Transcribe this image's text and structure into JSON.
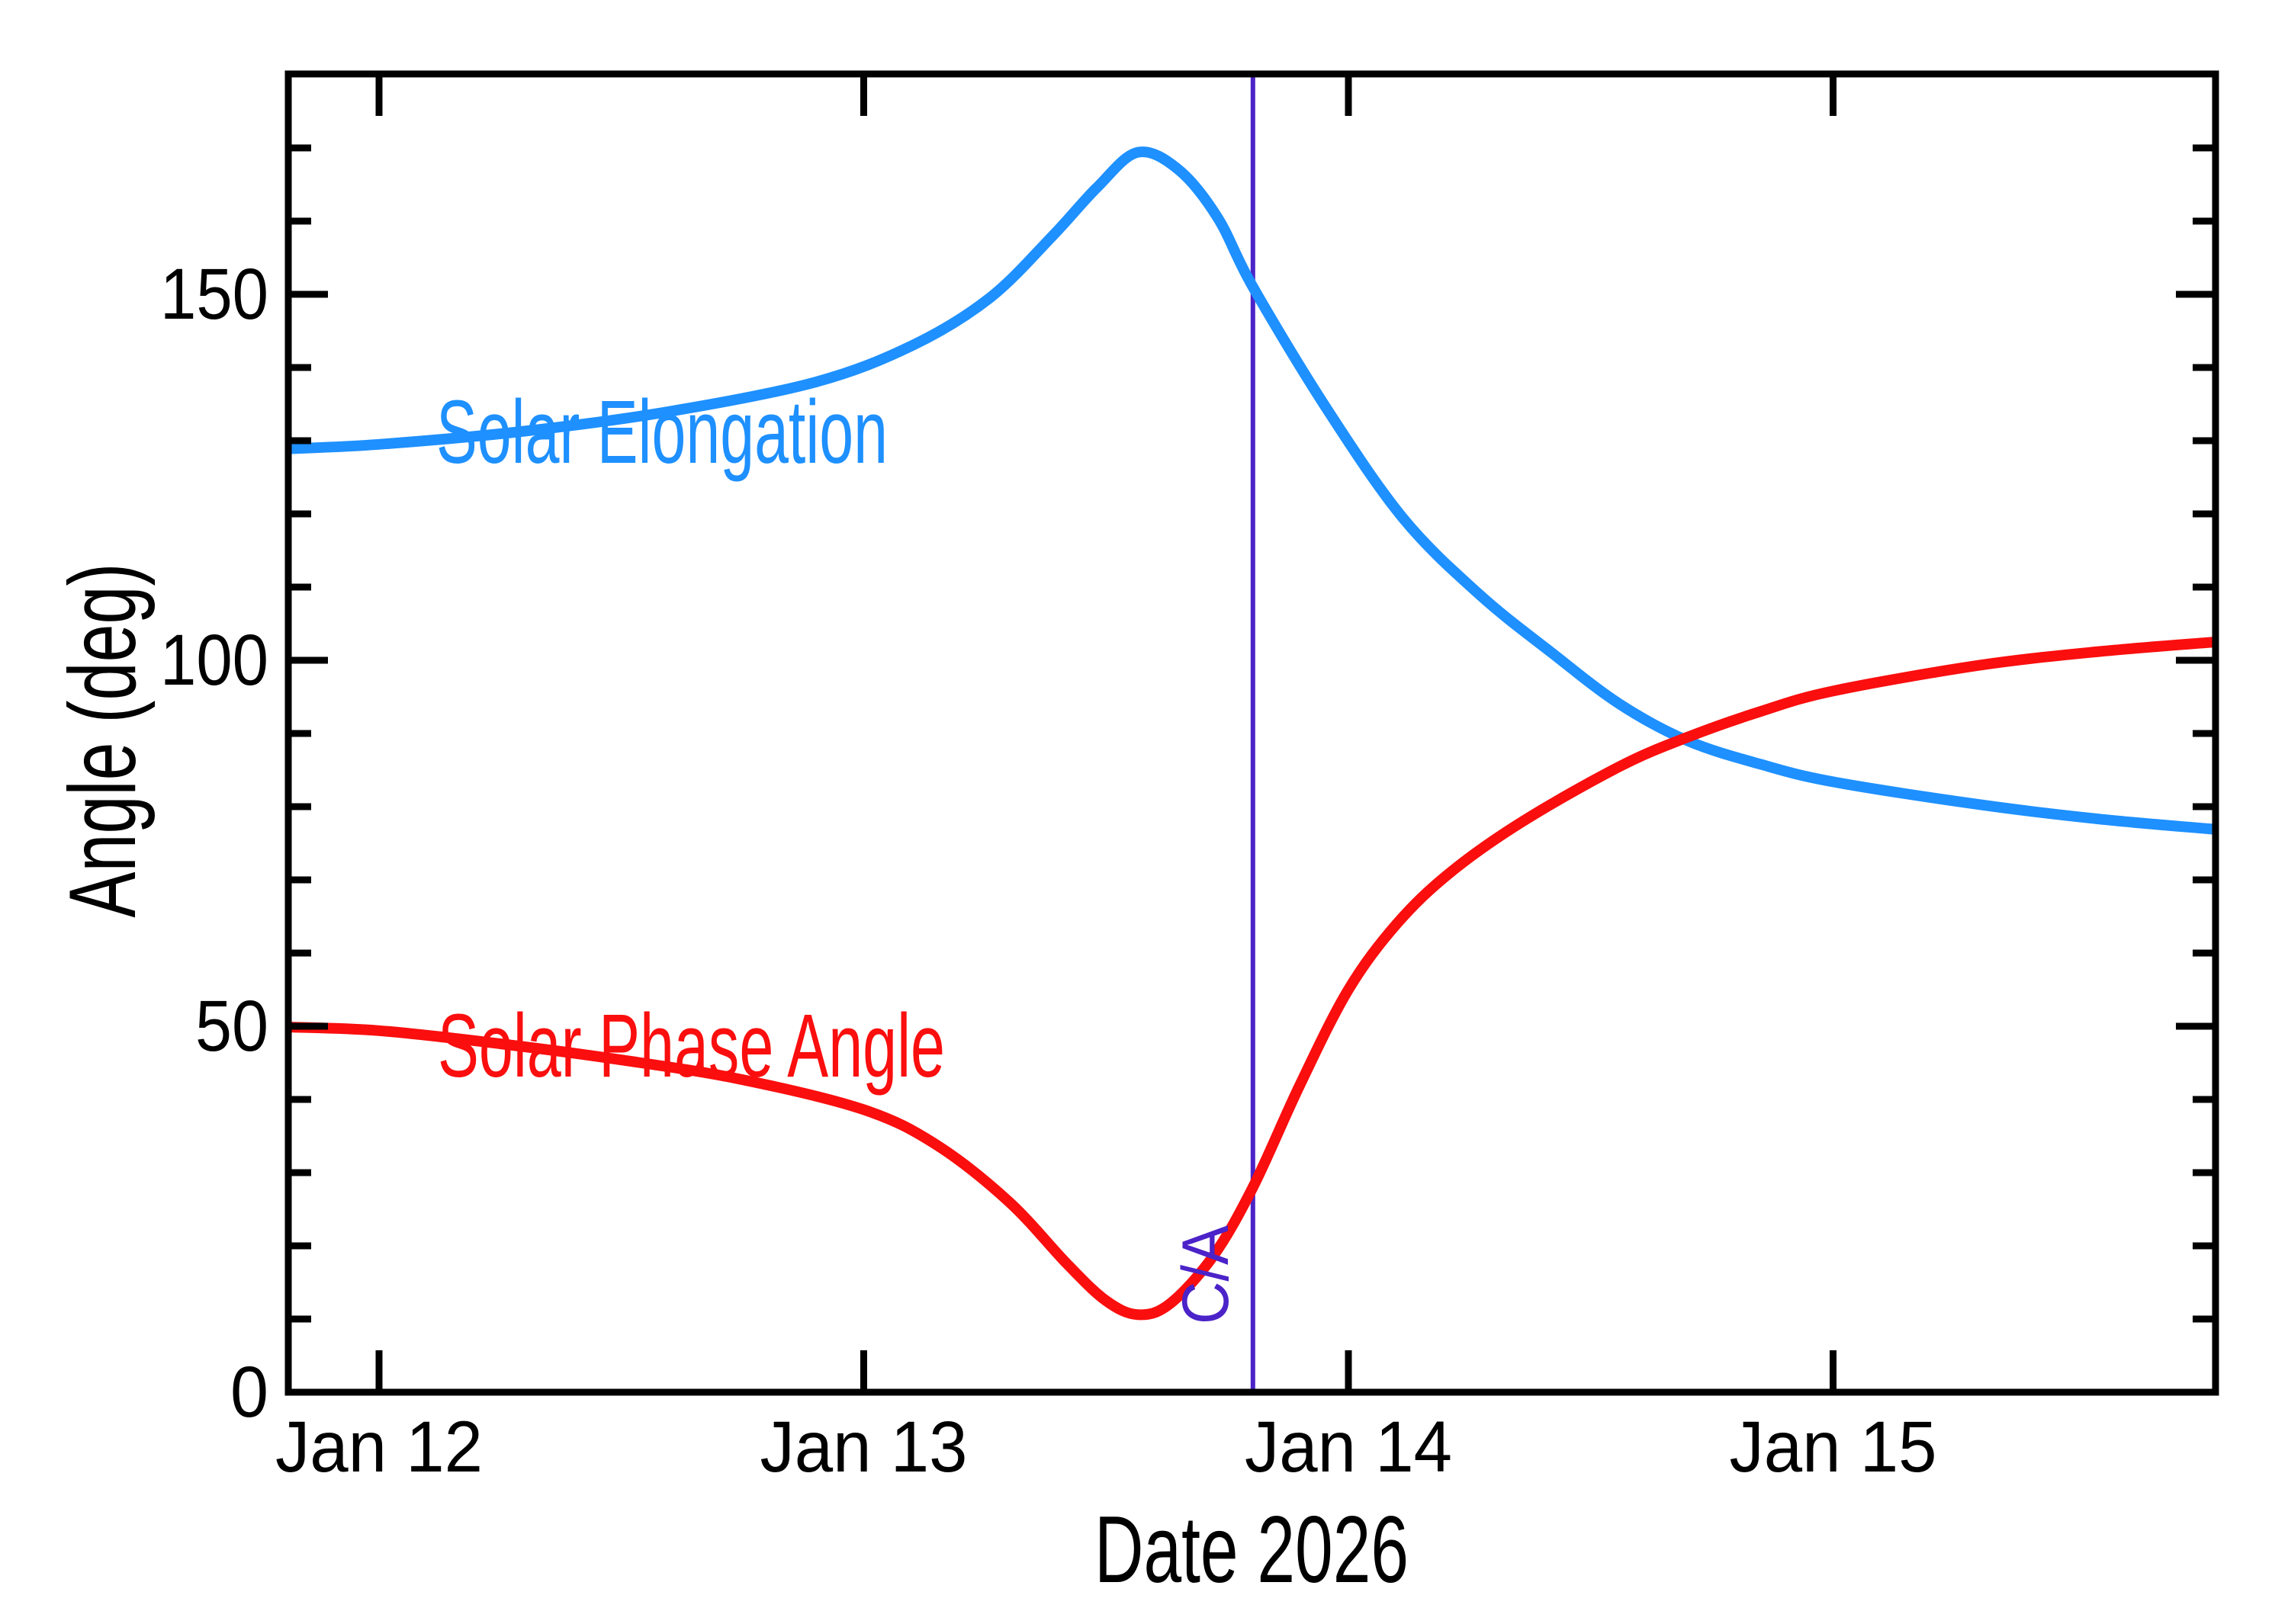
{
  "figure": {
    "background": "#FFFFFF",
    "frame_color": "#000000"
  },
  "chart_data": {
    "type": "line",
    "title": "",
    "xlabel": "Date 2026",
    "ylabel": "Angle (deg)",
    "xlim_days": [
      11.813,
      15.789
    ],
    "ylim_deg": [
      0,
      180.1
    ],
    "x_ticks_days": [
      12,
      13,
      14,
      15
    ],
    "x_tick_labels": [
      "Jan 12",
      "Jan 13",
      "Jan 14",
      "Jan 15"
    ],
    "y_ticks_deg": [
      50,
      100,
      150
    ],
    "y_tick_labels": [
      "50",
      "100",
      "150"
    ],
    "y_zero_tick_label": "0",
    "y_minor_step_deg": 10,
    "grid": false,
    "legend_position": "inline-curve-labels",
    "series": [
      {
        "name": "Solar Elongation",
        "color": "#1E90FF",
        "points_day_deg": [
          [
            11.813,
            128.9
          ],
          [
            12.0,
            129.5
          ],
          [
            12.3,
            131.3
          ],
          [
            12.6,
            134.0
          ],
          [
            12.9,
            138.0
          ],
          [
            13.1,
            143.0
          ],
          [
            13.26,
            149.5
          ],
          [
            13.39,
            158.0
          ],
          [
            13.48,
            164.5
          ],
          [
            13.565,
            169.4
          ],
          [
            13.65,
            167.0
          ],
          [
            13.73,
            160.5
          ],
          [
            13.803,
            151.0
          ],
          [
            13.956,
            134.3
          ],
          [
            14.113,
            119.4
          ],
          [
            14.27,
            109.0
          ],
          [
            14.42,
            101.0
          ],
          [
            14.56,
            94.0
          ],
          [
            14.7,
            89.0
          ],
          [
            14.85,
            85.8
          ],
          [
            15.0,
            83.4
          ],
          [
            15.3,
            80.3
          ],
          [
            15.55,
            78.3
          ],
          [
            15.789,
            76.9
          ]
        ]
      },
      {
        "name": "Solar Phase Angle",
        "color": "#FA0E0E",
        "points_day_deg": [
          [
            11.813,
            49.9
          ],
          [
            12.0,
            49.4
          ],
          [
            12.25,
            47.6
          ],
          [
            12.5,
            45.4
          ],
          [
            12.75,
            42.7
          ],
          [
            13.0,
            38.6
          ],
          [
            13.15,
            33.8
          ],
          [
            13.3,
            26.0
          ],
          [
            13.42,
            17.5
          ],
          [
            13.5,
            12.5
          ],
          [
            13.565,
            10.6
          ],
          [
            13.63,
            12.0
          ],
          [
            13.72,
            18.5
          ],
          [
            13.803,
            28.0
          ],
          [
            13.9,
            42.0
          ],
          [
            14.0,
            55.0
          ],
          [
            14.1,
            64.0
          ],
          [
            14.21,
            71.0
          ],
          [
            14.36,
            78.0
          ],
          [
            14.56,
            85.5
          ],
          [
            14.7,
            89.5
          ],
          [
            14.85,
            93.0
          ],
          [
            15.0,
            95.8
          ],
          [
            15.3,
            99.3
          ],
          [
            15.55,
            101.2
          ],
          [
            15.789,
            102.5
          ]
        ]
      }
    ],
    "annotations": [
      {
        "label": "C/A",
        "x_day": 13.803,
        "color": "#4B23C8"
      }
    ]
  }
}
